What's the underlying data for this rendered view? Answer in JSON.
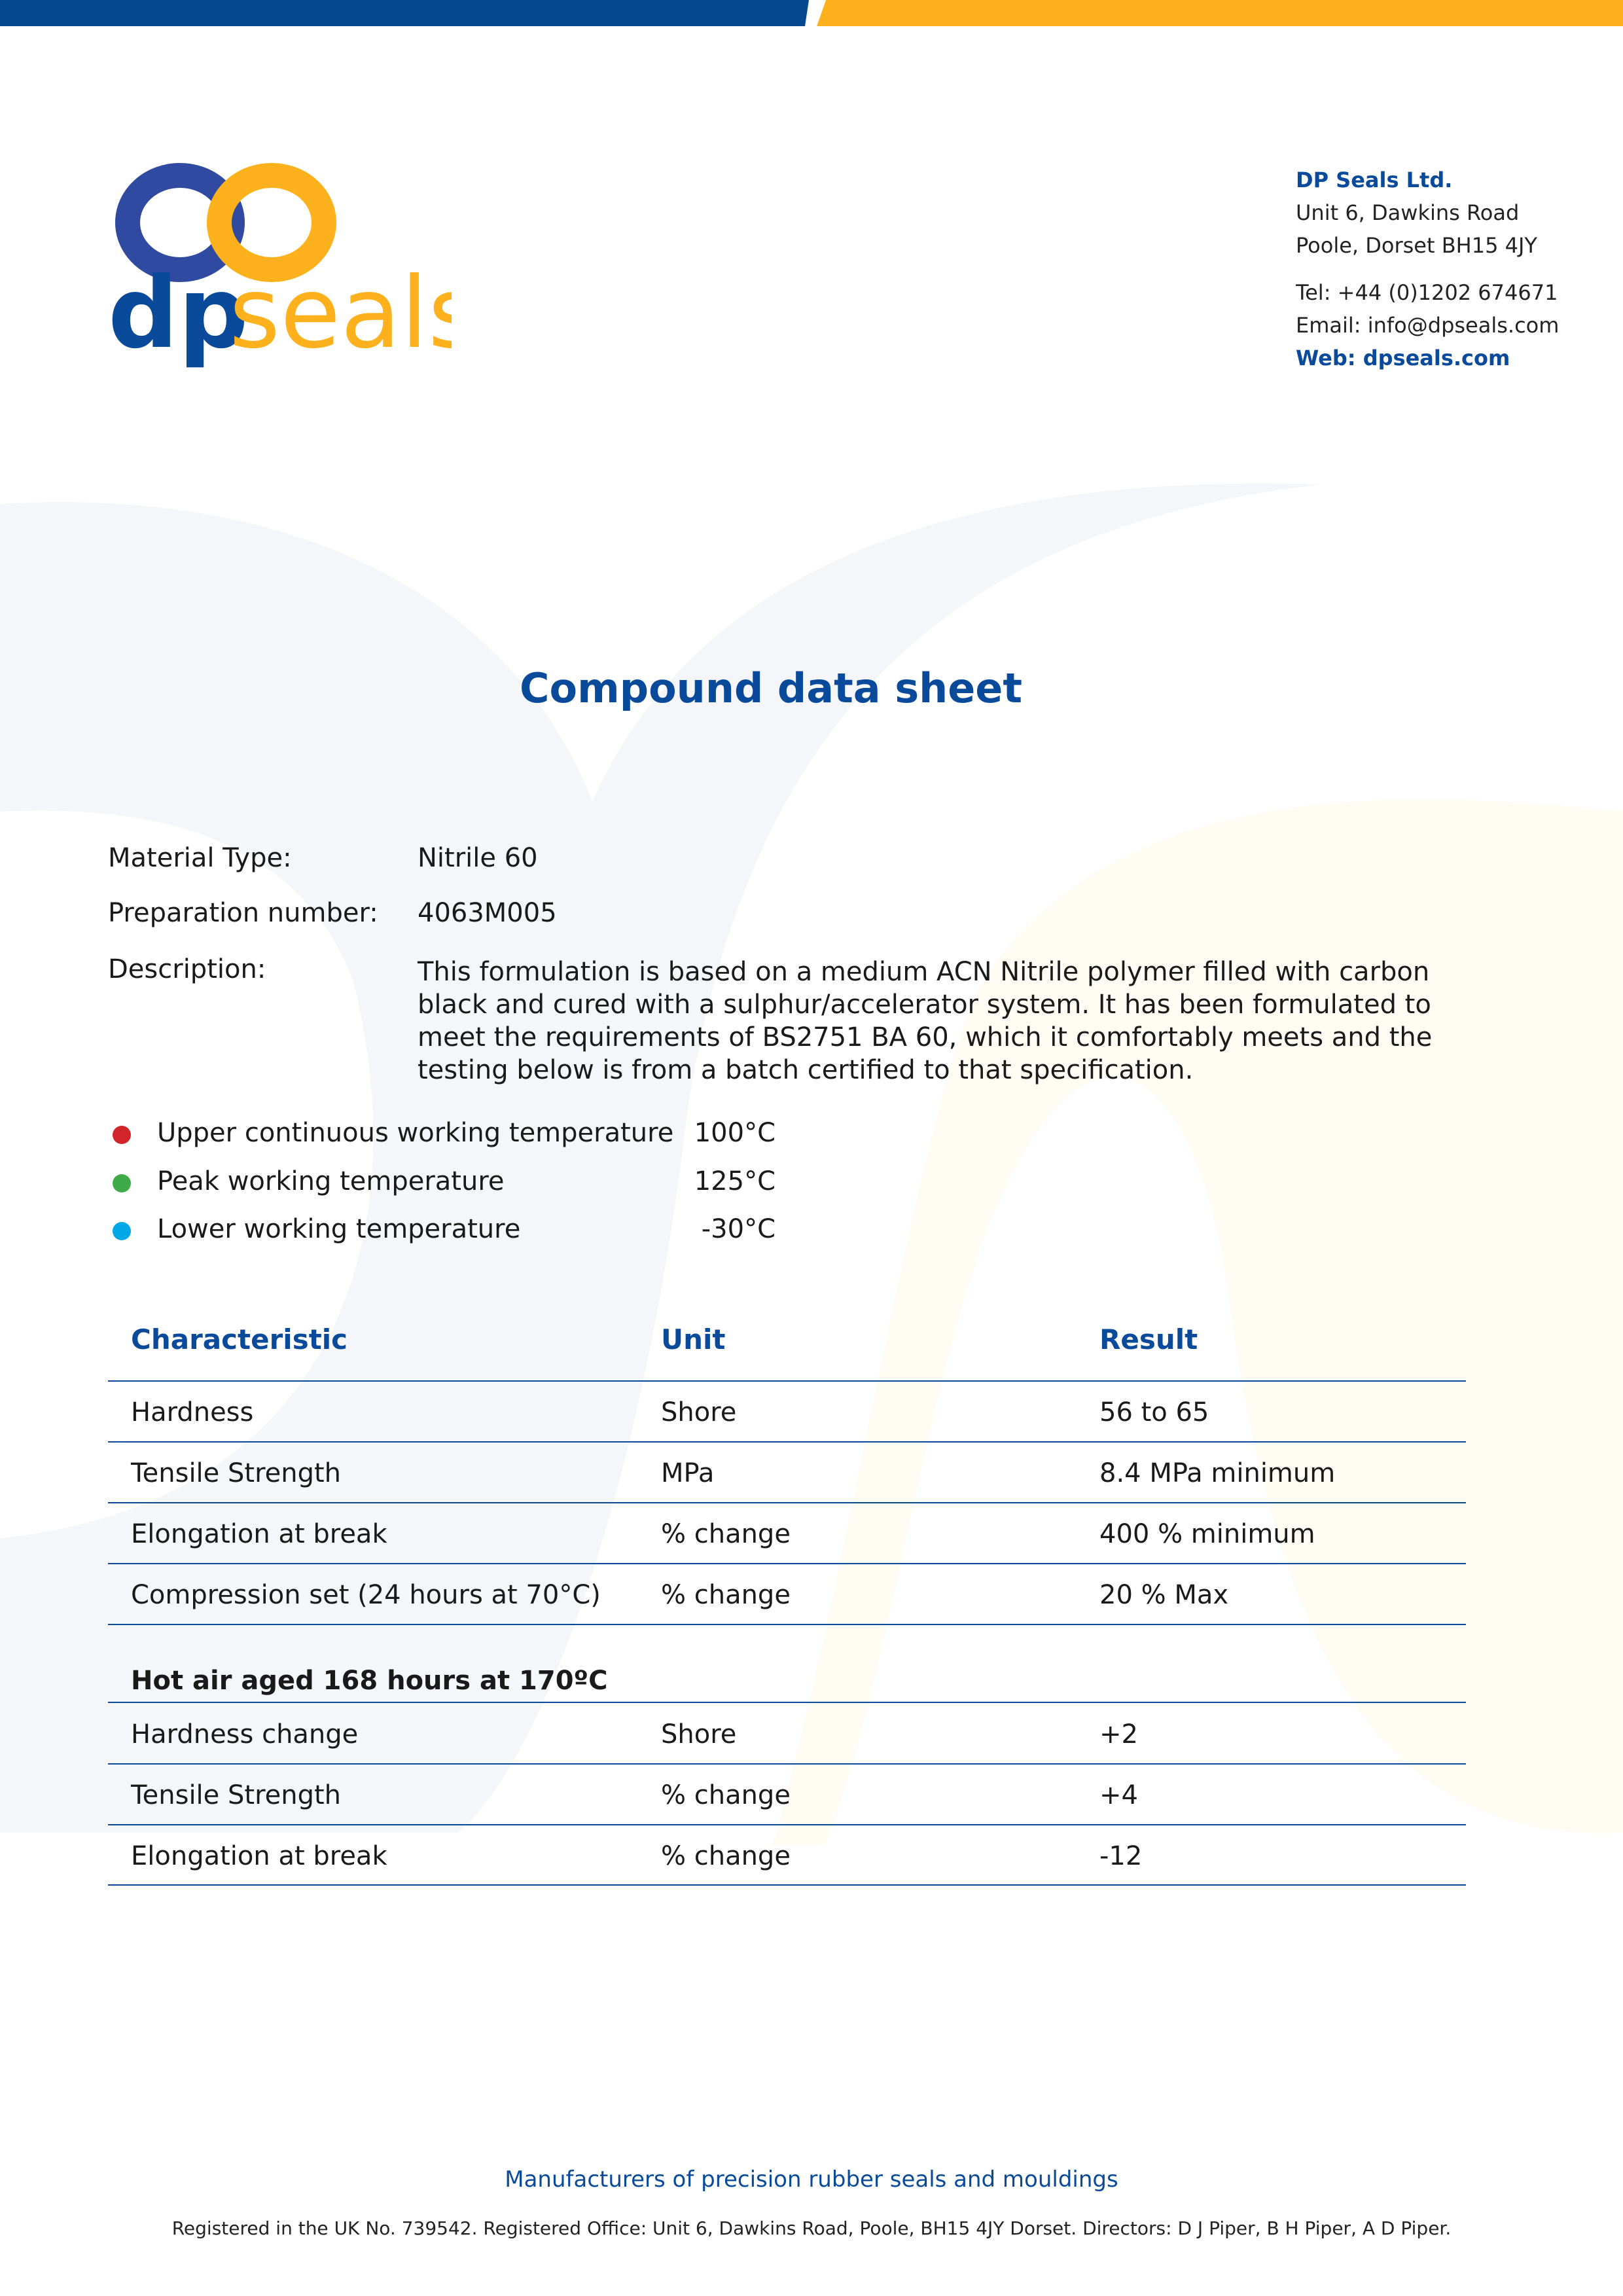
{
  "brand": {
    "logo_text_dp": "dp",
    "logo_text_seals": "seals",
    "blue": "#0a4a9a",
    "yellow": "#fdb21d"
  },
  "contact": {
    "company": "DP Seals Ltd.",
    "address1": "Unit 6, Dawkins Road",
    "address2": "Poole, Dorset BH15 4JY",
    "tel": "Tel: +44 (0)1202 674671",
    "email": "Email: info@dpseals.com",
    "web": "Web: dpseals.com"
  },
  "title": "Compound data sheet",
  "fields": [
    {
      "label": "Material Type:",
      "value": "Nitrile 60"
    },
    {
      "label": "Preparation number:",
      "value": "4063M005"
    },
    {
      "label": "Description:",
      "value": "This formulation is based on a medium ACN Nitrile polymer filled with carbon black and cured with a sulphur/accelerator system. It has been formulated to meet the requirements of BS2751 BA 60, which it comfortably meets and the testing below is from a batch certified to that specification."
    }
  ],
  "temperatures": [
    {
      "label": "Upper continuous working temperature",
      "value": "100°C",
      "color": "#d4242b"
    },
    {
      "label": "Peak working temperature",
      "value": "125°C",
      "color": "#3eab48"
    },
    {
      "label": "Lower working temperature",
      "value": "-30°C",
      "color": "#00a8e8"
    }
  ],
  "table": {
    "headers": [
      "Characteristic",
      "Unit",
      "Result"
    ],
    "rows": [
      [
        "Hardness",
        "Shore",
        "56 to 65"
      ],
      [
        "Tensile Strength",
        "MPa",
        "8.4 MPa minimum"
      ],
      [
        "Elongation at break",
        "% change",
        "400 % minimum"
      ],
      [
        "Compression set (24 hours at 70°C)",
        "% change",
        "20 % Max"
      ]
    ],
    "section_title": "Hot air aged 168 hours at 170ºC",
    "section_rows": [
      [
        "Hardness change",
        "Shore",
        "+2"
      ],
      [
        "Tensile Strength",
        "% change",
        "+4"
      ],
      [
        "Elongation at break",
        "% change",
        "-12"
      ]
    ]
  },
  "footer": {
    "tagline": "Manufacturers of precision rubber seals and mouldings",
    "registration": "Registered in the UK No. 739542. Registered Office: Unit 6, Dawkins Road, Poole, BH15 4JY Dorset. Directors: D J Piper, B H Piper, A D Piper."
  }
}
